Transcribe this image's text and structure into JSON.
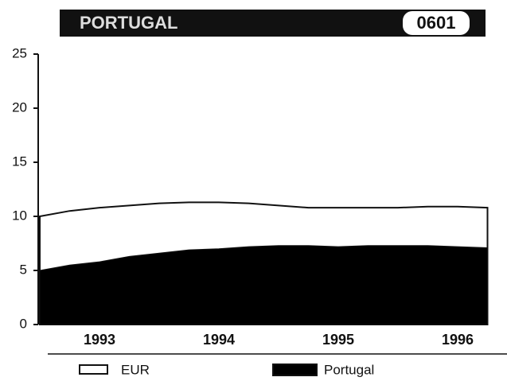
{
  "chart_data": {
    "type": "area",
    "title": "PORTUGAL",
    "code": "0601",
    "categories": [
      null,
      null,
      "1993",
      null,
      null,
      null,
      "1994",
      null,
      null,
      null,
      "1995",
      null,
      null,
      null,
      "1996",
      null
    ],
    "series": [
      {
        "name": "EUR",
        "color": "#ffffff",
        "values": [
          10.0,
          10.5,
          10.8,
          11.0,
          11.2,
          11.3,
          11.3,
          11.2,
          11.0,
          10.8,
          10.8,
          10.8,
          10.8,
          10.9,
          10.9,
          10.8
        ]
      },
      {
        "name": "Portugal",
        "color": "#000000",
        "values": [
          5.0,
          5.5,
          5.8,
          6.3,
          6.6,
          6.9,
          7.0,
          7.2,
          7.3,
          7.3,
          7.2,
          7.3,
          7.3,
          7.3,
          7.2,
          7.1
        ]
      }
    ],
    "ylim": [
      0,
      25
    ],
    "yticks": [
      0,
      5,
      10,
      15,
      20,
      25
    ],
    "legend": "bottom"
  }
}
